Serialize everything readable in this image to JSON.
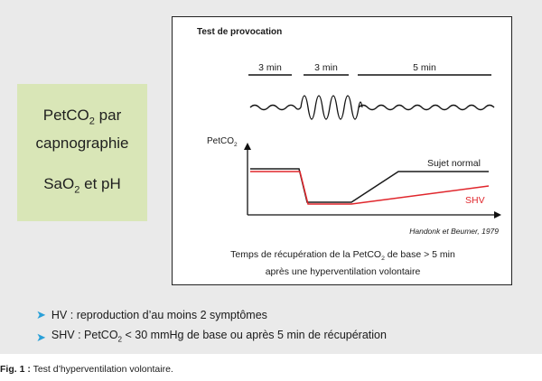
{
  "left_box": {
    "line1_pre": "PetCO",
    "line1_sub": "2",
    "line1_post": " par",
    "line2": "capnographie",
    "line3_pre": "SaO",
    "line3_sub": "2",
    "line3_post": " et pH"
  },
  "diagram": {
    "title": "Test de provocation",
    "segments": [
      "3 min",
      "3 min",
      "5 min"
    ],
    "y_axis_label_pre": "PetCO",
    "y_axis_label_sub": "2",
    "series": [
      {
        "name": "Sujet normal",
        "color": "#1a1a1a"
      },
      {
        "name": "SHV",
        "color": "#e0262c"
      }
    ],
    "citation": "Handonk et Beumer, 1979",
    "caption_line1_pre": "Temps de récupération de la PetCO",
    "caption_line1_sub": "2",
    "caption_line1_post": " de base > 5 min",
    "caption_line2": "après une hyperventilation volontaire"
  },
  "bullets": {
    "b1": "HV : reproduction d’au moins 2 symptômes",
    "b2_pre": "SHV : PetCO",
    "b2_sub": "2",
    "b2_post": " < 30 mmHg de base ou après 5 min de récupération"
  },
  "figure_caption": {
    "label": "Fig. 1 :",
    "text": " Test d’hyperventilation volontaire."
  },
  "colors": {
    "panel": "#eaeaea",
    "green_box": "#d9e6b7",
    "arrow": "#2aa0d8",
    "shv": "#e0262c"
  }
}
